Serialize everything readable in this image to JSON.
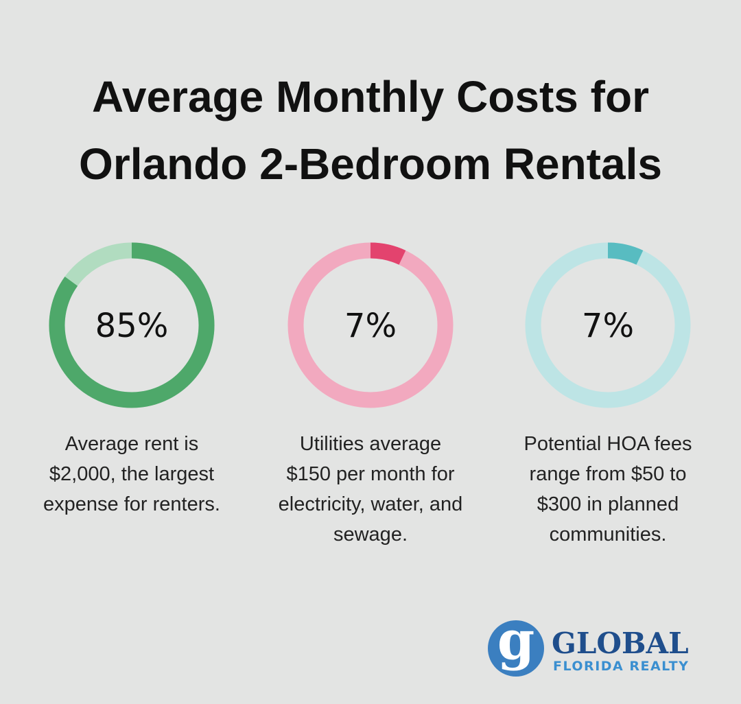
{
  "title": "Average Monthly Costs for Orlando 2-Bedroom Rentals",
  "chart_data": [
    {
      "type": "donut",
      "values": [
        85
      ],
      "value_labels": [
        "85%"
      ],
      "color": "#4ea86a",
      "track_color": "#b1dcc0",
      "caption": [
        "Average rent is",
        "$2,000, the largest",
        "expense for renters."
      ]
    },
    {
      "type": "donut",
      "values": [
        7
      ],
      "value_labels": [
        "7%"
      ],
      "color": "#e3436e",
      "track_color": "#f2a9bf",
      "caption": [
        "Utilities average",
        "$150 per month for",
        "electricity, water, and",
        "sewage."
      ]
    },
    {
      "type": "donut",
      "values": [
        7
      ],
      "value_labels": [
        "7%"
      ],
      "color": "#58bcc1",
      "track_color": "#bde4e5",
      "caption": [
        "Potential HOA fees",
        "range from $50 to",
        "$300 in planned",
        "communities."
      ]
    }
  ],
  "logo": {
    "mark": "g",
    "name": "GLOBAL",
    "tagline": "FLORIDA REALTY"
  }
}
